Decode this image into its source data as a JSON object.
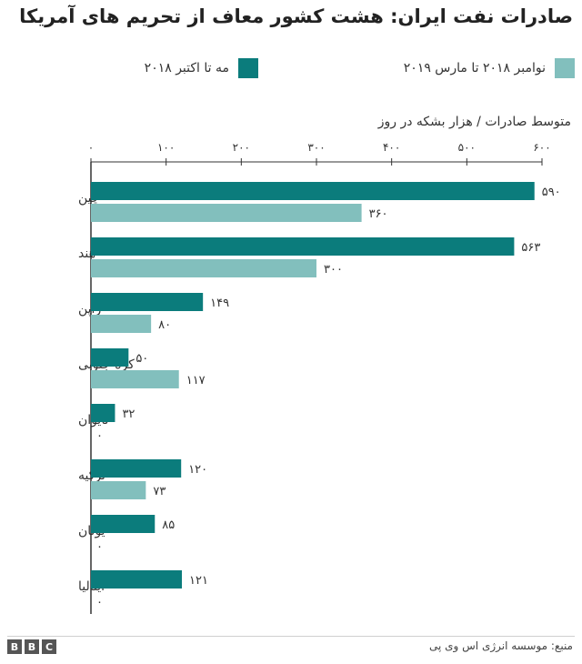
{
  "title": "صادرات نفت ایران: هشت کشور معاف از تحریم های آمریکا",
  "legend": {
    "nov_label": "نوامبر ۲۰۱۸ تا مارس ۲۰۱۹",
    "may_label": "مه تا اکتبر ۲۰۱۸"
  },
  "colors": {
    "may_series": "#0b7c7c",
    "nov_series": "#82bfbd",
    "axis": "#333333",
    "grid": "#bbbbbb"
  },
  "source": "منبع: موسسه انرژی اس وی پی",
  "brand": [
    "B",
    "B",
    "C"
  ],
  "chart_data": {
    "type": "bar",
    "orientation": "horizontal",
    "xlabel": "متوسط صادرات / هزار بشکه در روز",
    "xlim": [
      0,
      600
    ],
    "xticks": [
      0,
      100,
      200,
      300,
      400,
      500,
      600
    ],
    "xtick_labels": [
      "۰",
      "۱۰۰",
      "۲۰۰",
      "۳۰۰",
      "۴۰۰",
      "۵۰۰",
      "۶۰۰"
    ],
    "categories": [
      "چین",
      "هند",
      "ژاپن",
      "کره جنوبی",
      "تایوان",
      "ترکیه",
      "یونان",
      "ایتالیا"
    ],
    "series": [
      {
        "name": "مه تا اکتبر ۲۰۱۸",
        "values": [
          590,
          563,
          149,
          50,
          32,
          120,
          85,
          121
        ],
        "labels": [
          "۵۹۰",
          "۵۶۳",
          "۱۴۹",
          "۵۰",
          "۳۲",
          "۱۲۰",
          "۸۵",
          "۱۲۱"
        ]
      },
      {
        "name": "نوامبر ۲۰۱۸ تا مارس ۲۰۱۹",
        "values": [
          360,
          300,
          80,
          117,
          0,
          73,
          0,
          0
        ],
        "labels": [
          "۳۶۰",
          "۳۰۰",
          "۸۰",
          "۱۱۷",
          "۰",
          "۷۳",
          "۰",
          "۰"
        ]
      }
    ],
    "grid": false,
    "legend_position": "top"
  }
}
